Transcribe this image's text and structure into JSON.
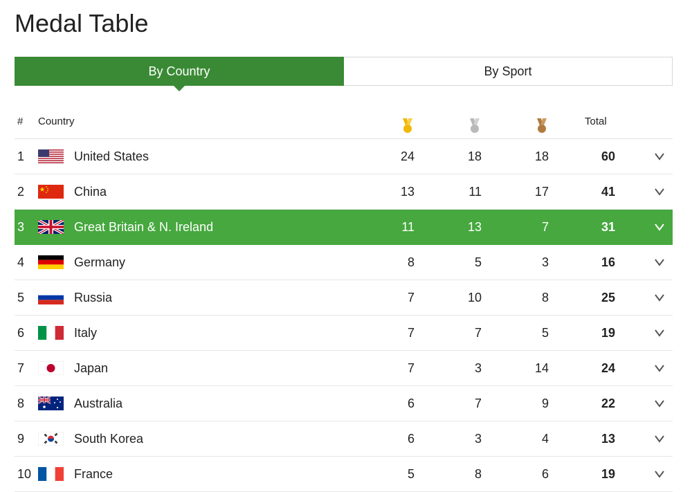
{
  "page": {
    "title": "Medal Table"
  },
  "tabs": [
    {
      "label": "By Country",
      "active": true
    },
    {
      "label": "By Sport",
      "active": false
    }
  ],
  "table": {
    "headers": {
      "rank": "#",
      "country": "Country",
      "total": "Total"
    },
    "medal_icons": {
      "gold": "gold-medal-icon",
      "silver": "silver-medal-icon",
      "bronze": "bronze-medal-icon"
    },
    "colors": {
      "accent": "#3a8a35",
      "highlight": "#46a83e",
      "gold": "#f2b705",
      "silver": "#b9b9b9",
      "bronze": "#b07b3e"
    },
    "highlighted_rank": "3",
    "rows": [
      {
        "rank": "1",
        "country": "United States",
        "flag": "us",
        "gold": "24",
        "silver": "18",
        "bronze": "18",
        "total": "60"
      },
      {
        "rank": "2",
        "country": "China",
        "flag": "cn",
        "gold": "13",
        "silver": "11",
        "bronze": "17",
        "total": "41"
      },
      {
        "rank": "3",
        "country": "Great Britain & N. Ireland",
        "flag": "gb",
        "gold": "11",
        "silver": "13",
        "bronze": "7",
        "total": "31"
      },
      {
        "rank": "4",
        "country": "Germany",
        "flag": "de",
        "gold": "8",
        "silver": "5",
        "bronze": "3",
        "total": "16"
      },
      {
        "rank": "5",
        "country": "Russia",
        "flag": "ru",
        "gold": "7",
        "silver": "10",
        "bronze": "8",
        "total": "25"
      },
      {
        "rank": "6",
        "country": "Italy",
        "flag": "it",
        "gold": "7",
        "silver": "7",
        "bronze": "5",
        "total": "19"
      },
      {
        "rank": "7",
        "country": "Japan",
        "flag": "jp",
        "gold": "7",
        "silver": "3",
        "bronze": "14",
        "total": "24"
      },
      {
        "rank": "8",
        "country": "Australia",
        "flag": "au",
        "gold": "6",
        "silver": "7",
        "bronze": "9",
        "total": "22"
      },
      {
        "rank": "9",
        "country": "South Korea",
        "flag": "kr",
        "gold": "6",
        "silver": "3",
        "bronze": "4",
        "total": "13"
      },
      {
        "rank": "10",
        "country": "France",
        "flag": "fr",
        "gold": "5",
        "silver": "8",
        "bronze": "6",
        "total": "19"
      }
    ]
  }
}
